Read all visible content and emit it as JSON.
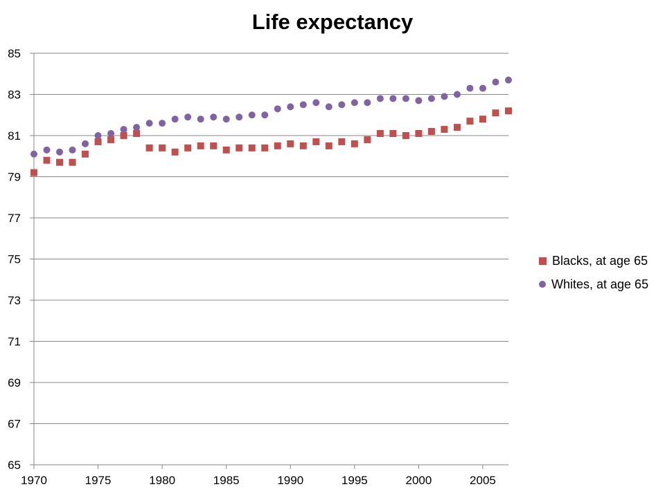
{
  "chart_data": {
    "type": "scatter",
    "title": "Life expectancy",
    "xlabel": "",
    "ylabel": "",
    "xlim": [
      1970,
      2007
    ],
    "ylim": [
      65,
      85
    ],
    "x_ticks": [
      1970,
      1975,
      1980,
      1985,
      1990,
      1995,
      2000,
      2005
    ],
    "y_ticks": [
      65,
      67,
      69,
      71,
      73,
      75,
      77,
      79,
      81,
      83,
      85
    ],
    "grid": "horizontal",
    "legend_position": "right",
    "x": [
      1970,
      1971,
      1972,
      1973,
      1974,
      1975,
      1976,
      1977,
      1978,
      1979,
      1980,
      1981,
      1982,
      1983,
      1984,
      1985,
      1986,
      1987,
      1988,
      1989,
      1990,
      1991,
      1992,
      1993,
      1994,
      1995,
      1996,
      1997,
      1998,
      1999,
      2000,
      2001,
      2002,
      2003,
      2004,
      2005,
      2006,
      2007
    ],
    "series": [
      {
        "name": "Blacks, at age 65",
        "marker": "square",
        "color": "#C0504D",
        "values": [
          79.2,
          79.8,
          79.7,
          79.7,
          80.1,
          80.7,
          80.8,
          81.0,
          81.1,
          80.4,
          80.4,
          80.2,
          80.4,
          80.5,
          80.5,
          80.3,
          80.4,
          80.4,
          80.4,
          80.5,
          80.6,
          80.5,
          80.7,
          80.5,
          80.7,
          80.6,
          80.8,
          81.1,
          81.1,
          81.0,
          81.1,
          81.2,
          81.3,
          81.4,
          81.7,
          81.8,
          82.1,
          82.2
        ]
      },
      {
        "name": "Whites, at age 65",
        "marker": "circle",
        "color": "#8064A2",
        "values": [
          80.1,
          80.3,
          80.2,
          80.3,
          80.6,
          81.0,
          81.1,
          81.3,
          81.4,
          81.6,
          81.6,
          81.8,
          81.9,
          81.8,
          81.9,
          81.8,
          81.9,
          82.0,
          82.0,
          82.3,
          82.4,
          82.5,
          82.6,
          82.4,
          82.5,
          82.6,
          82.6,
          82.8,
          82.8,
          82.8,
          82.7,
          82.8,
          82.9,
          83.0,
          83.3,
          83.3,
          83.6,
          83.7
        ]
      }
    ]
  }
}
